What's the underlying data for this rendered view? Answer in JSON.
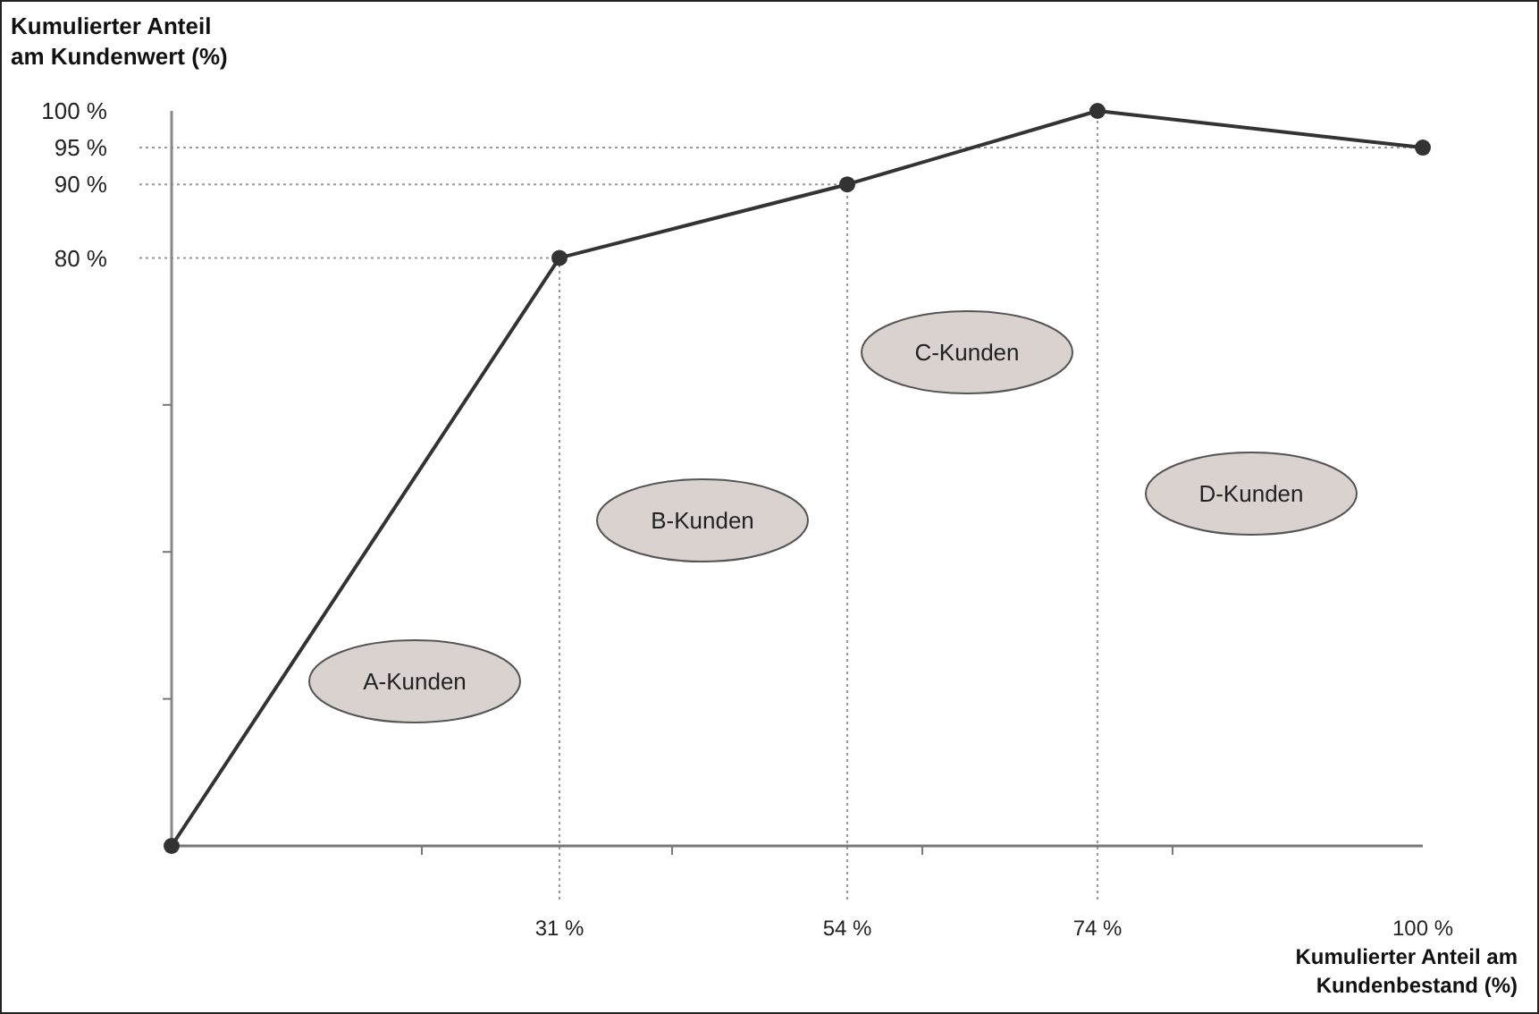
{
  "chart_data": {
    "type": "line",
    "xlabel": "Kumulierter Anteil am Kundenbestand (%)",
    "ylabel": "Kumulierter Anteil am Kundenwert (%)",
    "x": [
      0,
      31,
      54,
      74,
      100
    ],
    "series": [
      {
        "color": "#333333",
        "values": [
          0,
          80,
          90,
          100,
          95
        ]
      }
    ],
    "xlim": [
      0,
      100
    ],
    "ylim": [
      0,
      100
    ],
    "xticks": [
      {
        "value": 20,
        "label": null
      },
      {
        "value": 31,
        "label": "31 %"
      },
      {
        "value": 40,
        "label": null
      },
      {
        "value": 54,
        "label": "54 %"
      },
      {
        "value": 60,
        "label": null
      },
      {
        "value": 74,
        "label": "74 %"
      },
      {
        "value": 80,
        "label": null
      },
      {
        "value": 100,
        "label": "100 %"
      }
    ],
    "yticks": [
      {
        "value": 20,
        "label": null
      },
      {
        "value": 40,
        "label": null
      },
      {
        "value": 60,
        "label": null
      },
      {
        "value": 80,
        "label": "80 %"
      },
      {
        "value": 90,
        "label": "90 %"
      },
      {
        "value": 95,
        "label": "95 %"
      },
      {
        "value": 100,
        "label": "100 %"
      }
    ],
    "ref_lines": [
      {
        "axis": "x",
        "value": 31,
        "line_style": "dotted",
        "color": "#999999"
      },
      {
        "axis": "x",
        "value": 54,
        "line_style": "dotted",
        "color": "#999999"
      },
      {
        "axis": "x",
        "value": 74,
        "line_style": "dotted",
        "color": "#999999"
      },
      {
        "axis": "y",
        "value": 80,
        "line_style": "dotted",
        "color": "#999999"
      },
      {
        "axis": "y",
        "value": 90,
        "line_style": "dotted",
        "color": "#999999"
      },
      {
        "axis": "y",
        "value": 95,
        "line_style": "dotted",
        "color": "#999999"
      }
    ],
    "annotations": [
      "A-Kunden",
      "B-Kunden",
      "C-Kunden",
      "D-Kunden"
    ],
    "marker": "circle",
    "line_style": "solid",
    "grid": false
  }
}
